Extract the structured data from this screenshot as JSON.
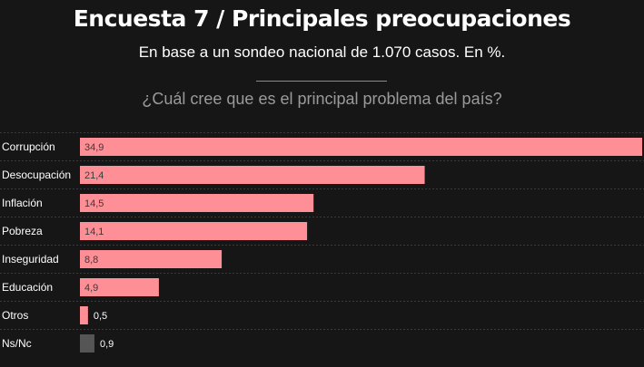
{
  "header": {
    "title": "Encuesta 7 / Principales preocupaciones",
    "subtitle": "En base a un sondeo nacional de 1.070 casos. En %.",
    "question": "¿Cuál cree que es el principal problema del país?"
  },
  "colors": {
    "bar": "#ff8f96",
    "bar_other": "#555555",
    "background": "#161616",
    "row_separator": "#3a3a3a"
  },
  "chart_data": {
    "type": "bar",
    "orientation": "horizontal",
    "categories": [
      "Corrupción",
      "Desocupación",
      "Inflación",
      "Pobreza",
      "Inseguridad",
      "Educación",
      "Otros",
      "Ns/Nc"
    ],
    "values": [
      34.9,
      21.4,
      14.5,
      14.1,
      8.8,
      4.9,
      0.5,
      0.9
    ],
    "value_labels": [
      "34,9",
      "21,4",
      "14,5",
      "14,1",
      "8,8",
      "4,9",
      "0,5",
      "0,9"
    ],
    "xlim": [
      0,
      34.9
    ],
    "grid": false,
    "legend": "none"
  }
}
